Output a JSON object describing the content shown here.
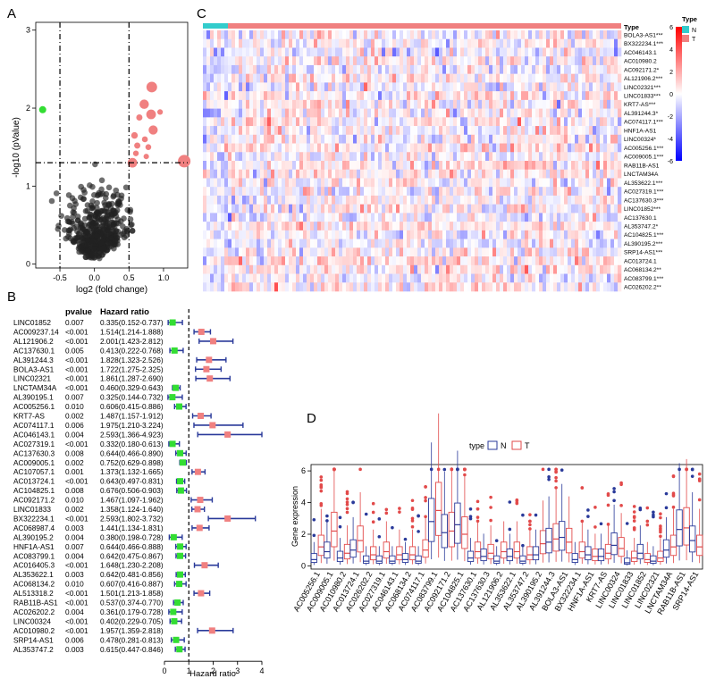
{
  "colors": {
    "red": "#f08080",
    "blue": "#2a3a9a",
    "green": "#33dd33",
    "heat_low": "#0000ff",
    "heat_high": "#ff0000",
    "type_N": "#33cccc",
    "type_T": "#f08080"
  },
  "panels": {
    "A": "A",
    "B": "B",
    "C": "C",
    "D": "D"
  },
  "chart_data": [
    {
      "type": "scatter",
      "panel": "A",
      "xlabel": "log2 (fold change)",
      "ylabel": "-log10 (pValue)",
      "x_ticks": [
        "-0.5",
        "0.0",
        "0.5",
        "1.0"
      ],
      "y_ticks": [
        "0",
        "1",
        "2",
        "3"
      ],
      "xlim": [
        -0.85,
        1.35
      ],
      "ylim": [
        -0.05,
        3.1
      ],
      "thresholds": {
        "x": [
          -0.5,
          0.5
        ],
        "y": 1.3
      },
      "up": [
        [
          1.3,
          1.32
        ],
        [
          0.72,
          2.05
        ],
        [
          0.82,
          1.92
        ],
        [
          0.95,
          1.95
        ],
        [
          0.83,
          2.27
        ],
        [
          0.73,
          1.6
        ],
        [
          0.62,
          1.52
        ],
        [
          0.55,
          1.3
        ],
        [
          0.6,
          1.42
        ],
        [
          0.75,
          1.38
        ],
        [
          0.85,
          1.72
        ],
        [
          0.65,
          1.88
        ],
        [
          0.58,
          1.65
        ],
        [
          0.78,
          1.5
        ]
      ],
      "down": [
        [
          -0.75,
          1.98
        ]
      ],
      "n_background": 450
    },
    {
      "type": "forest",
      "panel": "B",
      "xlabel": "Hazard ratio",
      "x_ticks": [
        "0",
        "1",
        "2",
        "3",
        "4"
      ],
      "xlim": [
        0,
        4
      ],
      "headers": {
        "pvalue": "pvalue",
        "hr": "Hazard ratio"
      },
      "rows": [
        {
          "gene": "LINC01852",
          "p": "0.007",
          "hr_text": "0.335(0.152-0.737)",
          "hr": 0.335,
          "lo": 0.152,
          "hi": 0.737
        },
        {
          "gene": "AC009237.14",
          "p": "<0.001",
          "hr_text": "1.514(1.214-1.888)",
          "hr": 1.514,
          "lo": 1.214,
          "hi": 1.888
        },
        {
          "gene": "AL121906.2",
          "p": "<0.001",
          "hr_text": "2.001(1.423-2.812)",
          "hr": 2.001,
          "lo": 1.423,
          "hi": 2.812
        },
        {
          "gene": "AC137630.1",
          "p": "0.005",
          "hr_text": "0.413(0.222-0.768)",
          "hr": 0.413,
          "lo": 0.222,
          "hi": 0.768
        },
        {
          "gene": "AL391244.3",
          "p": "<0.001",
          "hr_text": "1.828(1.323-2.526)",
          "hr": 1.828,
          "lo": 1.323,
          "hi": 2.526
        },
        {
          "gene": "BOLA3-AS1",
          "p": "<0.001",
          "hr_text": "1.722(1.275-2.325)",
          "hr": 1.722,
          "lo": 1.275,
          "hi": 2.325
        },
        {
          "gene": "LINC02321",
          "p": "<0.001",
          "hr_text": "1.861(1.287-2.690)",
          "hr": 1.861,
          "lo": 1.287,
          "hi": 2.69
        },
        {
          "gene": "LNCTAM34A",
          "p": "<0.001",
          "hr_text": "0.460(0.329-0.643)",
          "hr": 0.46,
          "lo": 0.329,
          "hi": 0.643
        },
        {
          "gene": "AL390195.1",
          "p": "0.007",
          "hr_text": "0.325(0.144-0.732)",
          "hr": 0.325,
          "lo": 0.144,
          "hi": 0.732
        },
        {
          "gene": "AC005256.1",
          "p": "0.010",
          "hr_text": "0.606(0.415-0.886)",
          "hr": 0.606,
          "lo": 0.415,
          "hi": 0.886
        },
        {
          "gene": "KRT7-AS",
          "p": "0.002",
          "hr_text": "1.487(1.157-1.912)",
          "hr": 1.487,
          "lo": 1.157,
          "hi": 1.912
        },
        {
          "gene": "AC074117.1",
          "p": "0.006",
          "hr_text": "1.975(1.210-3.224)",
          "hr": 1.975,
          "lo": 1.21,
          "hi": 3.224
        },
        {
          "gene": "AC046143.1",
          "p": "0.004",
          "hr_text": "2.593(1.366-4.923)",
          "hr": 2.593,
          "lo": 1.366,
          "hi": 4.923
        },
        {
          "gene": "AC027319.1",
          "p": "<0.001",
          "hr_text": "0.332(0.180-0.613)",
          "hr": 0.332,
          "lo": 0.18,
          "hi": 0.613
        },
        {
          "gene": "AC137630.3",
          "p": "0.008",
          "hr_text": "0.644(0.466-0.890)",
          "hr": 0.644,
          "lo": 0.466,
          "hi": 0.89
        },
        {
          "gene": "AC009005.1",
          "p": "0.002",
          "hr_text": "0.752(0.629-0.898)",
          "hr": 0.752,
          "lo": 0.629,
          "hi": 0.898
        },
        {
          "gene": "AC107057.1",
          "p": "0.001",
          "hr_text": "1.373(1.132-1.665)",
          "hr": 1.373,
          "lo": 1.132,
          "hi": 1.665
        },
        {
          "gene": "AC013724.1",
          "p": "<0.001",
          "hr_text": "0.643(0.497-0.831)",
          "hr": 0.643,
          "lo": 0.497,
          "hi": 0.831
        },
        {
          "gene": "AC104825.1",
          "p": "0.008",
          "hr_text": "0.676(0.506-0.903)",
          "hr": 0.676,
          "lo": 0.506,
          "hi": 0.903
        },
        {
          "gene": "AC092171.2",
          "p": "0.010",
          "hr_text": "1.467(1.097-1.962)",
          "hr": 1.467,
          "lo": 1.097,
          "hi": 1.962
        },
        {
          "gene": "LINC01833",
          "p": "0.002",
          "hr_text": "1.358(1.124-1.640)",
          "hr": 1.358,
          "lo": 1.124,
          "hi": 1.64
        },
        {
          "gene": "BX322234.1",
          "p": "<0.001",
          "hr_text": "2.593(1.802-3.732)",
          "hr": 2.593,
          "lo": 1.802,
          "hi": 3.732
        },
        {
          "gene": "AC068987.4",
          "p": "0.003",
          "hr_text": "1.441(1.134-1.831)",
          "hr": 1.441,
          "lo": 1.134,
          "hi": 1.831
        },
        {
          "gene": "AL390195.2",
          "p": "0.004",
          "hr_text": "0.380(0.198-0.728)",
          "hr": 0.38,
          "lo": 0.198,
          "hi": 0.728
        },
        {
          "gene": "HNF1A-AS1",
          "p": "0.007",
          "hr_text": "0.644(0.466-0.888)",
          "hr": 0.644,
          "lo": 0.466,
          "hi": 0.888
        },
        {
          "gene": "AC083799.1",
          "p": "0.004",
          "hr_text": "0.642(0.475-0.867)",
          "hr": 0.642,
          "lo": 0.475,
          "hi": 0.867
        },
        {
          "gene": "AC016405.3",
          "p": "<0.001",
          "hr_text": "1.648(1.230-2.208)",
          "hr": 1.648,
          "lo": 1.23,
          "hi": 2.208
        },
        {
          "gene": "AL353622.1",
          "p": "0.003",
          "hr_text": "0.642(0.481-0.856)",
          "hr": 0.642,
          "lo": 0.481,
          "hi": 0.856
        },
        {
          "gene": "AC068134.2",
          "p": "0.010",
          "hr_text": "0.607(0.416-0.887)",
          "hr": 0.607,
          "lo": 0.416,
          "hi": 0.887
        },
        {
          "gene": "AL513318.2",
          "p": "<0.001",
          "hr_text": "1.501(1.213-1.858)",
          "hr": 1.501,
          "lo": 1.213,
          "hi": 1.858
        },
        {
          "gene": "RAB11B-AS1",
          "p": "<0.001",
          "hr_text": "0.537(0.374-0.770)",
          "hr": 0.537,
          "lo": 0.374,
          "hi": 0.77
        },
        {
          "gene": "AC026202.2",
          "p": "0.004",
          "hr_text": "0.361(0.179-0.728)",
          "hr": 0.361,
          "lo": 0.179,
          "hi": 0.728
        },
        {
          "gene": "LINC00324",
          "p": "<0.001",
          "hr_text": "0.402(0.229-0.705)",
          "hr": 0.402,
          "lo": 0.229,
          "hi": 0.705
        },
        {
          "gene": "AC010980.2",
          "p": "<0.001",
          "hr_text": "1.957(1.359-2.818)",
          "hr": 1.957,
          "lo": 1.359,
          "hi": 2.818
        },
        {
          "gene": "SRP14-AS1",
          "p": "0.006",
          "hr_text": "0.478(0.281-0.813)",
          "hr": 0.478,
          "lo": 0.281,
          "hi": 0.813
        },
        {
          "gene": "AL353747.2",
          "p": "0.003",
          "hr_text": "0.615(0.447-0.846)",
          "hr": 0.615,
          "lo": 0.447,
          "hi": 0.846
        }
      ]
    },
    {
      "type": "heatmap",
      "panel": "C",
      "annotation_label": "Type",
      "n_normal_frac": 0.06,
      "rows": [
        "BOLA3-AS1***",
        "BX322234.1***",
        "AC046143.1",
        "AC010980.2",
        "AC092171.2*",
        "AL121906.2***",
        "LINC02321***",
        "LINC01833***",
        "KRT7-AS***",
        "AL391244.3*",
        "AC074117.1***",
        "HNF1A-AS1",
        "LINC00324*",
        "AC005256.1***",
        "AC009005.1***",
        "RAB11B-AS1",
        "LNCTAM34A",
        "AL353622.1***",
        "AC027319.1***",
        "AC137630.3***",
        "LINC01852***",
        "AC137630.1",
        "AL353747.2*",
        "AC104825.1***",
        "AL390195.2***",
        "SRP14-AS1***",
        "AC013724.1",
        "AC068134.2**",
        "AC083799.1***",
        "AC026202.2**"
      ],
      "colorbar_ticks": [
        "6",
        "4",
        "2",
        "0",
        "-2",
        "-4",
        "-6"
      ],
      "colorbar_range": [
        -6,
        6
      ],
      "legend": {
        "title": "Type",
        "items": [
          {
            "label": "N"
          },
          {
            "label": "T"
          }
        ]
      }
    },
    {
      "type": "boxplot",
      "panel": "D",
      "ylabel": "Gene expression",
      "y_ticks": [
        "0",
        "2",
        "4",
        "6"
      ],
      "ylim": [
        -0.2,
        6.4
      ],
      "legend": {
        "title": "type",
        "items": [
          "N",
          "T"
        ]
      },
      "categories": [
        "AC005256.1",
        "AC009005.1",
        "AC010980.2",
        "AC013724.1",
        "AC026202.2",
        "AC027319.1",
        "AC046143.1",
        "AC068134.2",
        "AC074117.1",
        "AC083799.1",
        "AC092171.2",
        "AC104825.1",
        "AC137630.1",
        "AC137630.3",
        "AL121906.2",
        "AL353622.1",
        "AL353747.2",
        "AL390195.2",
        "AL391244.3",
        "BOLA3-AS1",
        "BX322234.1",
        "HNF1A-AS1",
        "KRT7-AS",
        "LINC00324",
        "LINC01833",
        "LINC01852",
        "LINC02321",
        "LNCTAM34A",
        "RAB11B-AS1",
        "SRP14-AS1"
      ],
      "series": [
        {
          "name": "N",
          "medians": [
            0.4,
            0.9,
            0.5,
            1.0,
            0.3,
            0.3,
            0.3,
            0.4,
            0.3,
            2.8,
            2.1,
            2.6,
            0.5,
            0.6,
            0.3,
            0.6,
            0.3,
            0.7,
            1.5,
            1.8,
            0.4,
            0.7,
            0.6,
            1.3,
            0.2,
            0.8,
            0.3,
            1.0,
            2.3,
            1.6
          ]
        },
        {
          "name": "T",
          "medians": [
            1.2,
            2.2,
            0.8,
            1.6,
            0.7,
            0.9,
            0.7,
            0.7,
            1.0,
            3.5,
            2.2,
            2.0,
            0.9,
            0.8,
            0.9,
            0.9,
            0.7,
            1.4,
            1.7,
            1.5,
            0.9,
            0.6,
            0.8,
            1.1,
            0.5,
            0.4,
            0.5,
            1.2,
            2.4,
            1.2
          ]
        }
      ]
    }
  ]
}
